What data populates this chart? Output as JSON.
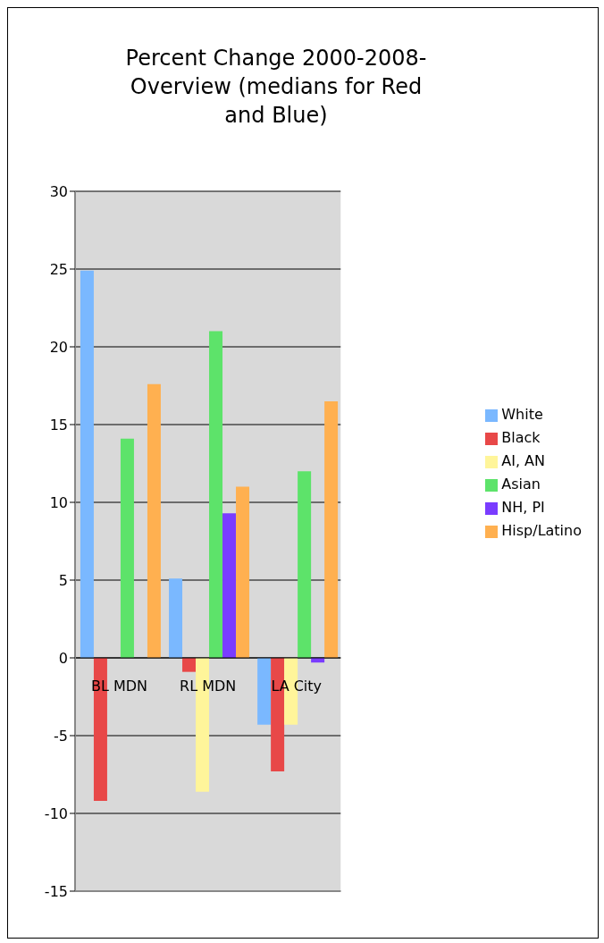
{
  "chart_data": {
    "type": "bar",
    "title": "Percent Change 2000-2008-Overview (medians for Red and Blue)",
    "categories": [
      "BL MDN",
      "RL MDN",
      "LA City"
    ],
    "series": [
      {
        "name": "White",
        "color": "#7ab8ff",
        "values": [
          24.9,
          5.1,
          -4.3
        ]
      },
      {
        "name": "Black",
        "color": "#e84848",
        "values": [
          -9.2,
          -0.9,
          -7.3
        ]
      },
      {
        "name": "AI, AN",
        "color": "#fff59a",
        "values": [
          null,
          -8.6,
          -4.3
        ]
      },
      {
        "name": "Asian",
        "color": "#5de36a",
        "values": [
          14.1,
          21.0,
          12.0
        ]
      },
      {
        "name": "NH, PI",
        "color": "#7a3cff",
        "values": [
          null,
          9.3,
          -0.3
        ]
      },
      {
        "name": "Hisp/Latino",
        "color": "#ffb050",
        "values": [
          17.6,
          11.0,
          16.5
        ]
      }
    ],
    "ylim": [
      -15,
      30
    ],
    "yticks": [
      -15,
      -10,
      -5,
      0,
      5,
      10,
      15,
      20,
      25,
      30
    ],
    "grid": "y",
    "legend": "right"
  }
}
